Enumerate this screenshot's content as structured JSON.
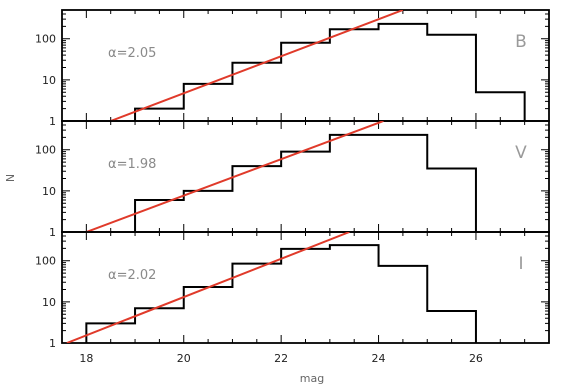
{
  "chart_data": {
    "type": "histogram",
    "xlabel": "mag",
    "ylabel": "N",
    "xlim": [
      17.5,
      27.5
    ],
    "ylim": [
      1,
      500
    ],
    "yscale": "log",
    "x_ticks": [
      18,
      20,
      22,
      24,
      26
    ],
    "y_ticks": [
      1,
      10,
      100
    ],
    "y_tick_labels": [
      "1",
      "10",
      "100"
    ],
    "grid": false,
    "panels": [
      {
        "band": "B",
        "alpha_text": "α=2.05",
        "bin_edges": [
          19,
          20,
          21,
          22,
          23,
          24,
          25,
          26,
          27
        ],
        "counts": [
          2,
          8,
          26,
          80,
          170,
          230,
          125,
          5,
          1
        ],
        "fit_line": [
          [
            18.5,
            1
          ],
          [
            24.5,
            500
          ]
        ]
      },
      {
        "band": "V",
        "alpha_text": "α=1.98",
        "bin_edges": [
          19,
          20,
          21,
          22,
          23,
          24,
          25,
          26
        ],
        "counts": [
          6,
          10,
          40,
          90,
          230,
          230,
          35,
          1
        ],
        "fit_line": [
          [
            18.0,
            1
          ],
          [
            24.1,
            500
          ]
        ]
      },
      {
        "band": "I",
        "alpha_text": "α=2.02",
        "bin_edges": [
          18,
          19,
          20,
          21,
          22,
          23,
          24,
          25,
          26
        ],
        "counts": [
          3,
          7,
          23,
          85,
          195,
          240,
          75,
          6,
          1
        ],
        "fit_line": [
          [
            17.6,
            1
          ],
          [
            23.4,
            500
          ]
        ]
      }
    ],
    "colors": {
      "histogram": "#000000",
      "fit": "#e03a2a",
      "background": "#ffffff"
    }
  }
}
